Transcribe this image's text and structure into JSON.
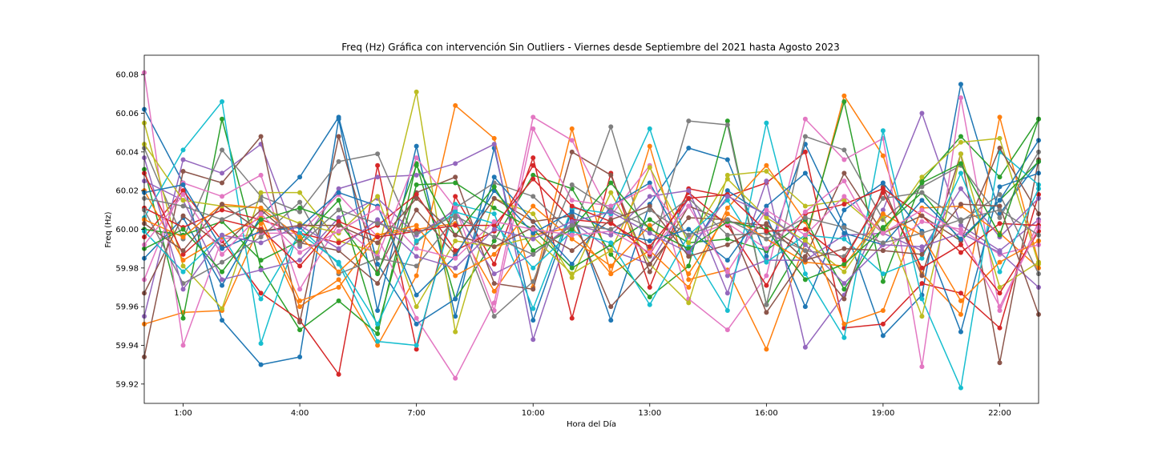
{
  "chart_data": {
    "type": "line",
    "title": "Freq (Hz) Gráfica con intervención Sin Outliers - Viernes desde Septiembre del 2021 hasta Agosto 2023",
    "xlabel": "Hora del Día",
    "ylabel": "Freq (Hz)",
    "xlim": [
      0,
      23
    ],
    "ylim": [
      59.91,
      60.09
    ],
    "x": [
      0,
      1,
      2,
      3,
      4,
      5,
      6,
      7,
      8,
      9,
      10,
      11,
      12,
      13,
      14,
      15,
      16,
      17,
      18,
      19,
      20,
      21,
      22,
      23
    ],
    "xticks": [
      1,
      4,
      7,
      10,
      13,
      16,
      19,
      22
    ],
    "xtick_labels": [
      "1:00",
      "4:00",
      "7:00",
      "10:00",
      "13:00",
      "16:00",
      "19:00",
      "22:00"
    ],
    "yticks": [
      59.92,
      59.94,
      59.96,
      59.98,
      60.0,
      60.02,
      60.04,
      60.06,
      60.08
    ],
    "ytick_labels": [
      "59.92",
      "59.94",
      "59.96",
      "59.98",
      "60.00",
      "60.02",
      "60.04",
      "60.06",
      "60.08"
    ],
    "grid": false,
    "legend": "none",
    "marker": "circle",
    "series": [
      {
        "color": "#1f77b4",
        "values": [
          60.062,
          60.024,
          59.953,
          59.93,
          59.934,
          60.057,
          59.958,
          60.043,
          59.955,
          60.042,
          59.953,
          60.01,
          59.953,
          60.013,
          60.042,
          60.036,
          59.986,
          60.044,
          60.002,
          59.945,
          59.966,
          60.075,
          60.008,
          60.035
        ]
      },
      {
        "color": "#ff7f0e",
        "values": [
          59.951,
          59.957,
          59.958,
          60.003,
          59.96,
          59.974,
          59.94,
          59.976,
          60.064,
          60.047,
          59.97,
          60.052,
          59.977,
          60.043,
          59.974,
          59.979,
          59.938,
          59.993,
          60.069,
          60.038,
          59.977,
          59.956,
          60.058,
          59.983
        ]
      },
      {
        "color": "#2ca02c",
        "values": [
          60.031,
          59.954,
          60.057,
          59.98,
          59.948,
          59.963,
          59.946,
          60.034,
          59.964,
          59.994,
          60.028,
          60.021,
          59.987,
          59.965,
          59.981,
          60.056,
          59.961,
          59.995,
          60.066,
          59.973,
          60.025,
          60.048,
          60.027,
          60.057
        ]
      },
      {
        "color": "#d62728",
        "values": [
          59.996,
          60.02,
          59.994,
          59.967,
          59.953,
          59.925,
          60.033,
          59.938,
          60.017,
          59.982,
          60.037,
          59.954,
          60.029,
          59.97,
          60.021,
          60.017,
          60.024,
          60.04,
          59.949,
          59.951,
          59.972,
          59.967,
          59.949,
          60.018
        ]
      },
      {
        "color": "#9467bd",
        "values": [
          59.955,
          60.036,
          60.029,
          60.044,
          59.991,
          60.021,
          60.027,
          60.028,
          60.034,
          60.044,
          59.943,
          60.004,
          59.989,
          59.982,
          60.016,
          59.967,
          60.025,
          59.939,
          59.966,
          60.01,
          60.06,
          60.002,
          59.989,
          60.005
        ]
      },
      {
        "color": "#8c564b",
        "values": [
          59.934,
          60.03,
          60.024,
          60.048,
          59.952,
          60.048,
          59.978,
          60.019,
          60.027,
          59.972,
          59.969,
          60.04,
          60.028,
          59.978,
          60.012,
          60.004,
          60.002,
          59.989,
          59.964,
          60.022,
          59.976,
          60.039,
          59.931,
          60.036
        ]
      },
      {
        "color": "#e377c2",
        "values": [
          60.081,
          59.94,
          59.995,
          59.998,
          59.998,
          60.018,
          59.996,
          59.954,
          59.923,
          59.962,
          60.058,
          60.046,
          60.007,
          60.033,
          59.964,
          59.948,
          59.976,
          60.057,
          60.036,
          60.047,
          59.929,
          60.068,
          59.958,
          60.004
        ]
      },
      {
        "color": "#7f7f7f",
        "values": [
          60.042,
          59.995,
          60.041,
          60.017,
          60.009,
          60.035,
          60.039,
          59.993,
          60.011,
          60.024,
          60.017,
          59.998,
          60.053,
          59.986,
          60.056,
          60.054,
          59.961,
          60.048,
          60.041,
          60.005,
          60.022,
          60.033,
          60.006,
          60.04
        ]
      },
      {
        "color": "#bcbd22",
        "values": [
          60.055,
          59.981,
          59.959,
          60.019,
          60.019,
          59.994,
          59.988,
          60.071,
          59.947,
          60.016,
          60.008,
          59.975,
          60.019,
          59.982,
          59.962,
          60.028,
          60.03,
          60.012,
          60.015,
          59.998,
          60.027,
          60.045,
          60.047,
          59.982
        ]
      },
      {
        "color": "#17becf",
        "values": [
          60.006,
          60.041,
          60.066,
          59.941,
          60.001,
          59.982,
          59.942,
          59.94,
          60.013,
          60.008,
          59.959,
          60.011,
          60.008,
          60.052,
          59.991,
          59.958,
          60.055,
          59.977,
          59.944,
          60.051,
          59.964,
          59.918,
          60.04,
          60.023
        ]
      },
      {
        "color": "#1f77b4",
        "values": [
          59.985,
          60.006,
          59.971,
          60.007,
          60.027,
          60.058,
          59.982,
          59.951,
          59.964,
          60.027,
          60.004,
          59.982,
          60.012,
          60.024,
          59.987,
          60.02,
          60.007,
          59.96,
          60.01,
          60.024,
          59.999,
          59.947,
          60.022,
          60.029
        ]
      },
      {
        "color": "#ff7f0e",
        "values": [
          60.02,
          59.984,
          59.996,
          60.006,
          59.963,
          59.97,
          59.997,
          60.0,
          60.003,
          59.968,
          59.997,
          60.001,
          59.977,
          59.989,
          59.97,
          60.011,
          60.033,
          60.004,
          59.951,
          59.958,
          60.011,
          60.012,
          59.998,
          59.98
        ]
      },
      {
        "color": "#2ca02c",
        "values": [
          60.0,
          59.997,
          60.004,
          59.984,
          59.994,
          60.015,
          59.949,
          60.023,
          60.024,
          60.011,
          60.0,
          59.98,
          59.992,
          60.005,
          59.993,
          59.995,
          59.989,
          60.005,
          59.969,
          60.001,
          60.019,
          59.994,
          60.015,
          60.035
        ]
      },
      {
        "color": "#d62728",
        "values": [
          60.011,
          60.001,
          60.01,
          60.005,
          59.998,
          59.993,
          60.002,
          60.018,
          59.989,
          59.999,
          60.033,
          60.012,
          60.004,
          59.987,
          60.019,
          60.002,
          59.971,
          60.008,
          60.013,
          60.021,
          60.007,
          59.988,
          60.003,
          60.002
        ]
      },
      {
        "color": "#9467bd",
        "values": [
          60.025,
          60.015,
          59.974,
          59.979,
          59.984,
          60.006,
          60.016,
          59.997,
          60.01,
          59.977,
          59.987,
          60.003,
          59.997,
          60.017,
          60.02,
          59.976,
          59.984,
          59.984,
          59.997,
          59.998,
          59.989,
          60.021,
          59.996,
          60.016
        ]
      },
      {
        "color": "#8c564b",
        "values": [
          59.967,
          60.007,
          59.991,
          60.01,
          59.993,
          59.989,
          59.972,
          60.01,
          59.987,
          60.016,
          60.004,
          60.007,
          59.96,
          59.982,
          60.006,
          60.005,
          59.957,
          59.986,
          60.029,
          59.998,
          60.007,
          59.994,
          60.042,
          60.008
        ]
      },
      {
        "color": "#e377c2",
        "values": [
          59.974,
          60.024,
          60.017,
          60.028,
          59.969,
          60.003,
          59.986,
          60.037,
          60.011,
          59.958,
          60.052,
          60.015,
          60.012,
          60.022,
          59.996,
          60.003,
          59.99,
          60.009,
          60.025,
          59.989,
          60.004,
          60.0,
          59.987,
          59.992
        ]
      },
      {
        "color": "#7f7f7f",
        "values": [
          60.01,
          59.972,
          59.983,
          59.996,
          60.014,
          59.977,
          59.985,
          59.981,
          60.006,
          59.955,
          59.973,
          60.023,
          60.01,
          60.001,
          60.016,
          59.997,
          59.998,
          59.989,
          59.986,
          60.016,
          60.019,
          60.004,
          60.018,
          59.977
        ]
      },
      {
        "color": "#bcbd22",
        "values": [
          60.044,
          60.015,
          60.012,
          60.011,
          60.003,
          59.998,
          60.017,
          59.96,
          59.994,
          59.991,
          59.996,
          59.977,
          59.989,
          60.032,
          59.993,
          60.026,
          60.006,
          59.994,
          59.978,
          60.007,
          59.955,
          60.039,
          59.97,
          59.983
        ]
      },
      {
        "color": "#17becf",
        "values": [
          59.999,
          59.978,
          59.997,
          59.964,
          59.998,
          59.983,
          59.951,
          59.994,
          60.009,
          60.003,
          59.98,
          59.999,
          59.993,
          59.961,
          59.997,
          60.015,
          59.983,
          59.997,
          59.995,
          59.977,
          59.985,
          60.029,
          59.978,
          60.021
        ]
      },
      {
        "color": "#1f77b4",
        "values": [
          60.019,
          60.023,
          59.99,
          59.999,
          60.001,
          60.019,
          60.012,
          59.966,
          59.986,
          60.02,
          59.998,
          60.009,
          59.999,
          59.994,
          60.0,
          59.984,
          60.012,
          60.029,
          59.998,
          59.992,
          60.015,
          59.995,
          60.015,
          60.046
        ]
      },
      {
        "color": "#ff7f0e",
        "values": [
          60.005,
          59.996,
          60.013,
          60.011,
          59.996,
          59.978,
          59.997,
          60.002,
          59.976,
          59.987,
          60.012,
          59.995,
          59.981,
          60.002,
          59.977,
          60.008,
          59.995,
          59.983,
          59.981,
          60.008,
          59.997,
          59.963,
          59.983,
          59.994
        ]
      },
      {
        "color": "#2ca02c",
        "values": [
          59.99,
          60.0,
          59.978,
          60.005,
          60.011,
          60.004,
          59.977,
          60.033,
          59.997,
          60.022,
          59.989,
          60.0,
          60.024,
          60.0,
          59.99,
          60.004,
          60.0,
          59.974,
          59.982,
          60.0,
          60.024,
          60.034,
          59.997,
          60.057
        ]
      },
      {
        "color": "#d62728",
        "values": [
          60.029,
          59.987,
          60.005,
          60.0,
          59.981,
          60.004,
          59.996,
          59.999,
          60.002,
          60.002,
          60.026,
          60.005,
          60.003,
          59.991,
          60.016,
          60.018,
          59.999,
          60.0,
          59.984,
          60.019,
          59.98,
          59.992,
          59.967,
          59.999
        ]
      },
      {
        "color": "#9467bd",
        "values": [
          60.037,
          59.969,
          59.997,
          59.993,
          60.002,
          59.99,
          60.005,
          59.986,
          59.98,
          60.0,
          59.995,
          60.004,
          60.009,
          59.998,
          59.988,
          60.017,
          60.008,
          59.992,
          59.972,
          59.992,
          59.991,
          59.998,
          59.988,
          59.97
        ]
      },
      {
        "color": "#8c564b",
        "values": [
          60.003,
          59.989,
          60.013,
          59.999,
          60.002,
          60.002,
          59.993,
          60.016,
          59.997,
          59.991,
          60.001,
          59.989,
          60.005,
          60.012,
          59.986,
          59.992,
          60.003,
          59.984,
          59.99,
          59.989,
          59.987,
          60.013,
          60.012,
          59.956
        ]
      },
      {
        "color": "#e377c2",
        "values": [
          59.992,
          60.018,
          59.987,
          60.008,
          59.988,
          59.999,
          60.011,
          59.99,
          59.985,
          60.004,
          60.0,
          59.997,
          59.999,
          59.988,
          60.012,
          59.978,
          60.01,
          59.997,
          60.017,
          59.998,
          60.01,
          59.998,
          59.96,
          60.001
        ]
      },
      {
        "color": "#7f7f7f",
        "values": [
          60.016,
          60.012,
          60.005,
          60.015,
          59.992,
          60.01,
          60.003,
          59.998,
          60.007,
          59.996,
          59.987,
          60.002,
          60.0,
          60.01,
          59.997,
          60.005,
          59.995,
          60.006,
          60.001,
          59.993,
          59.998,
          60.005,
          60.01,
          59.997
        ]
      }
    ]
  }
}
